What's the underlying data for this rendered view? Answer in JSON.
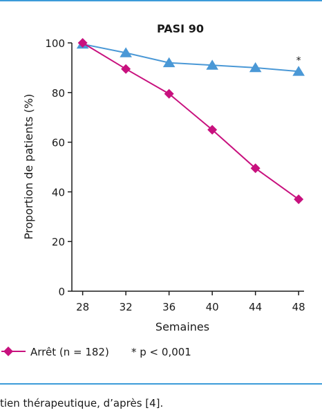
{
  "colors": {
    "rule": "#3b9bd9",
    "series_maintien": "#4a98d6",
    "series_arret": "#c8117e",
    "axis": "#1a1a1a"
  },
  "caption": "tien thérapeutique, d’après [4].",
  "chart_data": {
    "type": "line",
    "title": "PASI 90",
    "xlabel": "Semaines",
    "ylabel": "Proportion de patients (%)",
    "x": [
      28,
      32,
      36,
      40,
      44,
      48
    ],
    "xlim": [
      27,
      48.5
    ],
    "ylim": [
      0,
      100
    ],
    "yticks": [
      0,
      20,
      40,
      60,
      80,
      100
    ],
    "grid": false,
    "series": [
      {
        "values": [
          99.5,
          96,
          92,
          91,
          90,
          88.5
        ],
        "marker": "triangle",
        "color_key": "series_maintien"
      },
      {
        "name": "Arrêt (n = 182)",
        "values": [
          100,
          89.5,
          79.5,
          65,
          49.5,
          37
        ],
        "marker": "diamond",
        "color_key": "series_arret"
      }
    ],
    "annotations": [
      {
        "text": "*",
        "x": 48,
        "y": 93
      }
    ],
    "legend": {
      "placement": "bottom",
      "note": "* p < 0,001"
    }
  }
}
